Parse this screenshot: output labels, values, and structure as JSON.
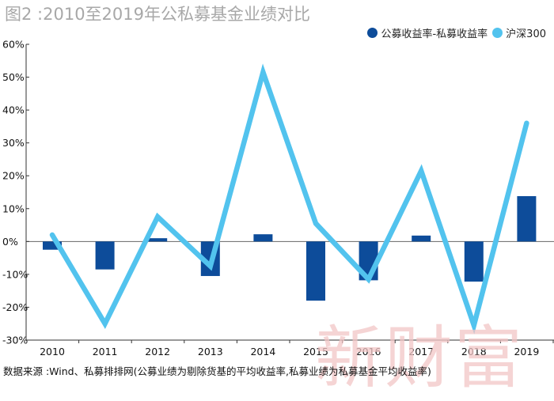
{
  "chart_data": {
    "type": "bar+line",
    "title": "图2 :2010至2019年公私募基金业绩对比",
    "categories": [
      "2010",
      "2011",
      "2012",
      "2013",
      "2014",
      "2015",
      "2016",
      "2017",
      "2018",
      "2019"
    ],
    "series": [
      {
        "name": "公募收益率-私募收益率",
        "type": "bar",
        "color": "#0d4c9a",
        "values": [
          -2.5,
          -8.5,
          1.0,
          -10.5,
          2.2,
          -18.0,
          -11.8,
          1.8,
          -12.2,
          13.8
        ]
      },
      {
        "name": "沪深300",
        "type": "line",
        "color": "#52c3ee",
        "values": [
          2.0,
          -25.0,
          7.5,
          -7.5,
          51.5,
          5.5,
          -11.5,
          21.5,
          -25.5,
          36.0
        ]
      }
    ],
    "ylim": [
      -30,
      60
    ],
    "yticks": [
      "60%",
      "50%",
      "40%",
      "30%",
      "20%",
      "10%",
      "0%",
      "-10%",
      "-20%",
      "-30%"
    ],
    "grid": false,
    "legend_position": "top-right",
    "source": "数据来源 :Wind、私募排排网(公募业绩为剔除货基的平均收益率,私募业绩为私募基金平均收益率)",
    "watermark": "新财富"
  }
}
